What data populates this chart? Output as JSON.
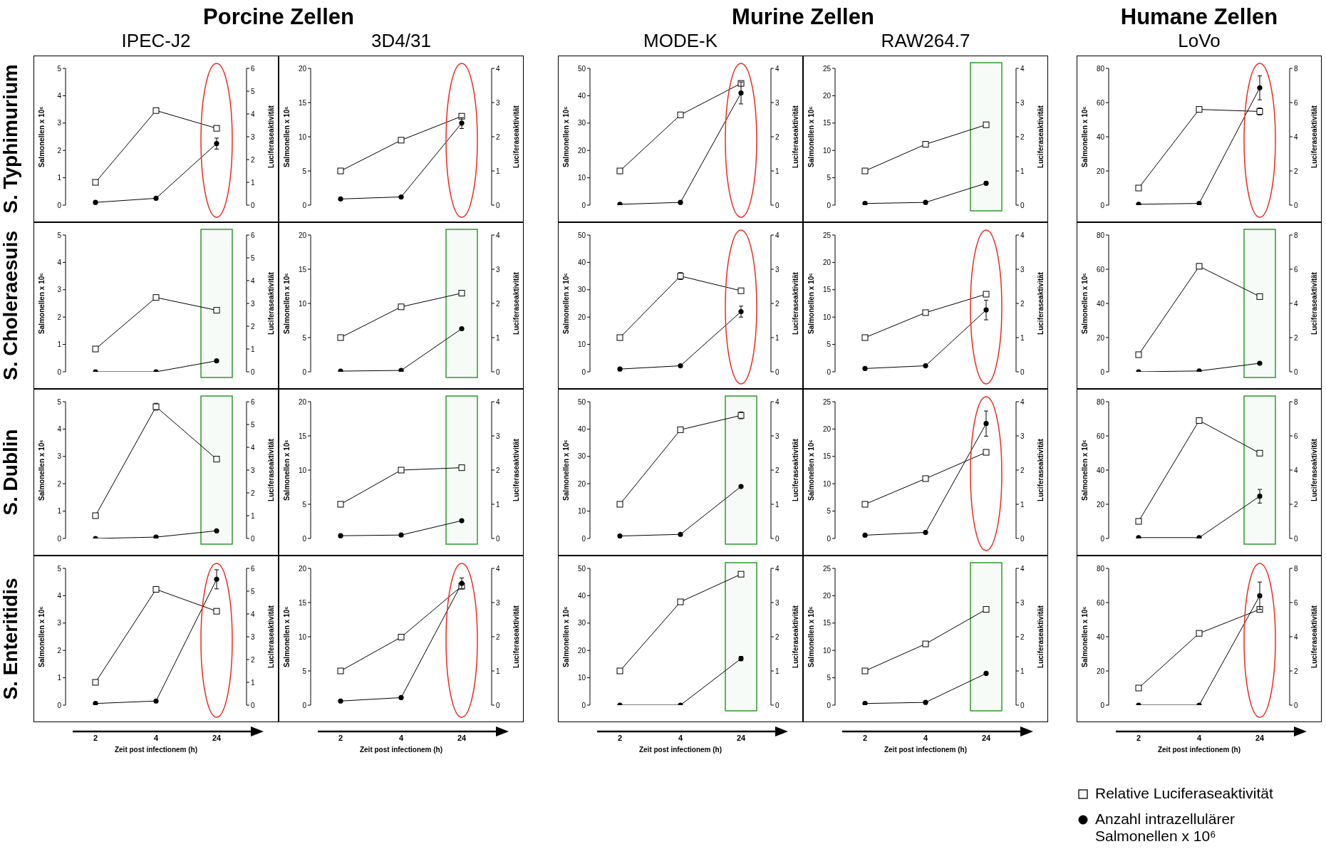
{
  "chart_data": [
    {
      "type": "line",
      "title": "IPEC-J2",
      "annotations": [
        "Porcine Zellen",
        "S. Typhimurium"
      ],
      "ylabel": "Salmonellen x 10⁶",
      "y2label": "Luciferaseaktivität",
      "categories": [
        "2",
        "4",
        "24"
      ],
      "ylim": [
        0,
        5
      ],
      "yticks": [
        0,
        1,
        2,
        3,
        4,
        5
      ],
      "y2lim": [
        0,
        6
      ],
      "y2ticks": [
        0,
        1,
        2,
        3,
        4,
        5,
        6
      ],
      "tick_labels": "y",
      "legend": false,
      "series": [
        {
          "type": "line",
          "marker": "square",
          "axis": "y2",
          "color": "#000000",
          "values": [
            1.0,
            4.15,
            3.37
          ],
          "errors": [
            null,
            0.1,
            0.05
          ]
        },
        {
          "type": "line",
          "marker": "circle",
          "axis": "y",
          "color": "#000000",
          "values": [
            0.1,
            0.25,
            2.25
          ],
          "errors": [
            null,
            null,
            0.2
          ]
        }
      ]
    },
    {
      "type": "line",
      "title": "3D4/31",
      "ylabel": "Salmonellen x 10⁶",
      "y2label": "Luciferaseaktivität",
      "categories": [
        "2",
        "4",
        "24"
      ],
      "ylim": [
        0,
        20
      ],
      "yticks": [
        0,
        5,
        10,
        15,
        20
      ],
      "y2lim": [
        0,
        4
      ],
      "y2ticks": [
        0,
        1,
        2,
        3,
        4
      ],
      "tick_labels": "y",
      "legend": false,
      "series": [
        {
          "type": "line",
          "marker": "square",
          "axis": "y2",
          "color": "#000000",
          "values": [
            1.0,
            1.9,
            2.6
          ],
          "errors": [
            null,
            0.05,
            0.05
          ]
        },
        {
          "type": "line",
          "marker": "circle",
          "axis": "y",
          "color": "#000000",
          "values": [
            0.9,
            1.2,
            12
          ],
          "errors": [
            null,
            null,
            0.8
          ]
        }
      ]
    },
    {
      "type": "line",
      "title": "MODE-K",
      "annotations": [
        "Murine Zellen"
      ],
      "ylabel": "Salmonellen x 10⁶",
      "y2label": "Luciferaseaktivität",
      "categories": [
        "2",
        "4",
        "24"
      ],
      "ylim": [
        0,
        50
      ],
      "yticks": [
        0,
        10,
        20,
        30,
        40,
        50
      ],
      "y2lim": [
        0,
        4
      ],
      "y2ticks": [
        0,
        1,
        2,
        3,
        4
      ],
      "tick_labels": "y",
      "legend": false,
      "series": [
        {
          "type": "line",
          "marker": "square",
          "axis": "y2",
          "color": "#000000",
          "values": [
            1.0,
            2.64,
            3.56
          ],
          "errors": [
            null,
            0.06,
            0.06
          ]
        },
        {
          "type": "line",
          "marker": "circle",
          "axis": "y",
          "color": "#000000",
          "values": [
            0.3,
            1.0,
            41
          ],
          "errors": [
            null,
            null,
            4
          ]
        }
      ]
    },
    {
      "type": "line",
      "title": "RAW264.7",
      "ylabel": "Salmonellen x 10⁶",
      "y2label": "Luciferaseaktivität",
      "categories": [
        "2",
        "4",
        "24"
      ],
      "ylim": [
        0,
        25
      ],
      "yticks": [
        0,
        5,
        10,
        15,
        20,
        25
      ],
      "y2lim": [
        0,
        4
      ],
      "y2ticks": [
        0,
        1,
        2,
        3,
        4
      ],
      "tick_labels": "y",
      "legend": false,
      "series": [
        {
          "type": "line",
          "marker": "square",
          "axis": "y2",
          "color": "#000000",
          "values": [
            1.0,
            1.78,
            2.35
          ],
          "errors": [
            null,
            null,
            0.06
          ]
        },
        {
          "type": "line",
          "marker": "circle",
          "axis": "y",
          "color": "#000000",
          "values": [
            0.3,
            0.5,
            4.0
          ],
          "errors": [
            null,
            null,
            0.3
          ]
        }
      ],
      "bands": [
        {
          "axis": "x",
          "from": "24",
          "to": "24",
          "color": "#2e9a2e"
        }
      ]
    },
    {
      "type": "line",
      "title": "LoVo",
      "annotations": [
        "Humane Zellen"
      ],
      "ylabel": "Salmonellen x 10⁶",
      "y2label": "Luciferaseaktivität",
      "categories": [
        "2",
        "4",
        "24"
      ],
      "ylim": [
        0,
        80
      ],
      "yticks": [
        0,
        20,
        40,
        60,
        80
      ],
      "y2lim": [
        0,
        8
      ],
      "y2ticks": [
        0,
        2,
        4,
        6,
        8
      ],
      "tick_labels": "y",
      "legend": false,
      "series": [
        {
          "type": "line",
          "marker": "square",
          "axis": "y2",
          "color": "#000000",
          "values": [
            1.0,
            5.6,
            5.48
          ],
          "errors": [
            null,
            0.15,
            0.2
          ]
        },
        {
          "type": "line",
          "marker": "circle",
          "axis": "y",
          "color": "#000000",
          "values": [
            0.5,
            1,
            68.6
          ],
          "errors": [
            null,
            null,
            7
          ]
        }
      ]
    },
    {
      "type": "line",
      "annotations": [
        "S. Choleraesuis"
      ],
      "ylabel": "Salmonellen x 10⁶",
      "y2label": "Luciferaseaktivität",
      "categories": [
        "2",
        "4",
        "24"
      ],
      "ylim": [
        0,
        5
      ],
      "yticks": [
        0,
        1,
        2,
        3,
        4,
        5
      ],
      "y2lim": [
        0,
        6
      ],
      "y2ticks": [
        0,
        1,
        2,
        3,
        4,
        5,
        6
      ],
      "tick_labels": "y",
      "legend": false,
      "series": [
        {
          "type": "line",
          "marker": "square",
          "axis": "y2",
          "color": "#000000",
          "values": [
            1.0,
            3.26,
            2.7
          ],
          "errors": [
            null,
            0.06,
            0.08
          ]
        },
        {
          "type": "line",
          "marker": "circle",
          "axis": "y",
          "color": "#000000",
          "values": [
            0,
            0,
            0.4
          ]
        }
      ],
      "bands": [
        {
          "axis": "x",
          "from": "24",
          "to": "24",
          "color": "#2e9a2e"
        }
      ]
    },
    {
      "type": "line",
      "ylabel": "Salmonellen x 10⁶",
      "y2label": "Luciferaseaktivität",
      "categories": [
        "2",
        "4",
        "24"
      ],
      "ylim": [
        0,
        20
      ],
      "yticks": [
        0,
        5,
        10,
        15,
        20
      ],
      "y2lim": [
        0,
        4
      ],
      "y2ticks": [
        0,
        1,
        2,
        3,
        4
      ],
      "tick_labels": "y",
      "legend": false,
      "series": [
        {
          "type": "line",
          "marker": "square",
          "axis": "y2",
          "color": "#000000",
          "values": [
            1.0,
            1.9,
            2.3
          ],
          "errors": [
            null,
            null,
            0.06
          ]
        },
        {
          "type": "line",
          "marker": "circle",
          "axis": "y",
          "color": "#000000",
          "values": [
            0.1,
            0.2,
            6.3
          ]
        }
      ],
      "bands": [
        {
          "axis": "x",
          "from": "24",
          "to": "24",
          "color": "#2e9a2e"
        }
      ]
    },
    {
      "type": "line",
      "ylabel": "Salmonellen x 10⁶",
      "y2label": "Luciferaseaktivität",
      "categories": [
        "2",
        "4",
        "24"
      ],
      "ylim": [
        0,
        50
      ],
      "yticks": [
        0,
        10,
        20,
        30,
        40,
        50
      ],
      "y2lim": [
        0,
        4
      ],
      "y2ticks": [
        0,
        1,
        2,
        3,
        4
      ],
      "tick_labels": "y",
      "legend": false,
      "series": [
        {
          "type": "line",
          "marker": "square",
          "axis": "y2",
          "color": "#000000",
          "values": [
            1.0,
            2.8,
            2.37
          ],
          "errors": [
            null,
            0.1,
            0.05
          ]
        },
        {
          "type": "line",
          "marker": "circle",
          "axis": "y",
          "color": "#000000",
          "values": [
            1,
            2.2,
            22
          ],
          "errors": [
            null,
            null,
            2
          ]
        }
      ]
    },
    {
      "type": "line",
      "ylabel": "Salmonellen x 10⁶",
      "y2label": "Luciferaseaktivität",
      "categories": [
        "2",
        "4",
        "24"
      ],
      "ylim": [
        0,
        25
      ],
      "yticks": [
        0,
        5,
        10,
        15,
        20,
        25
      ],
      "y2lim": [
        0,
        4
      ],
      "y2ticks": [
        0,
        1,
        2,
        3,
        4
      ],
      "tick_labels": "y",
      "legend": false,
      "series": [
        {
          "type": "line",
          "marker": "square",
          "axis": "y2",
          "color": "#000000",
          "values": [
            1.0,
            1.73,
            2.27
          ],
          "errors": [
            null,
            null,
            0.06
          ]
        },
        {
          "type": "line",
          "marker": "circle",
          "axis": "y",
          "color": "#000000",
          "values": [
            0.6,
            1.1,
            11.3
          ],
          "errors": [
            null,
            null,
            1.8
          ]
        }
      ]
    },
    {
      "type": "line",
      "ylabel": "Salmonellen x 10⁶",
      "y2label": "Luciferaseaktivität",
      "categories": [
        "2",
        "4",
        "24"
      ],
      "ylim": [
        0,
        80
      ],
      "yticks": [
        0,
        20,
        40,
        60,
        80
      ],
      "y2lim": [
        0,
        8
      ],
      "y2ticks": [
        0,
        2,
        4,
        6,
        8
      ],
      "tick_labels": "y",
      "legend": false,
      "series": [
        {
          "type": "line",
          "marker": "square",
          "axis": "y2",
          "color": "#000000",
          "values": [
            1.0,
            6.17,
            4.4
          ],
          "errors": [
            null,
            0.15,
            null
          ]
        },
        {
          "type": "line",
          "marker": "circle",
          "axis": "y",
          "color": "#000000",
          "values": [
            0,
            0.5,
            5
          ]
        }
      ],
      "bands": [
        {
          "axis": "x",
          "from": "24",
          "to": "24",
          "color": "#2e9a2e"
        }
      ]
    },
    {
      "type": "line",
      "annotations": [
        "S. Dublin"
      ],
      "ylabel": "Salmonellen x 10⁶",
      "y2label": "Luciferaseaktivität",
      "categories": [
        "2",
        "4",
        "24"
      ],
      "ylim": [
        0,
        5
      ],
      "yticks": [
        0,
        1,
        2,
        3,
        4,
        5
      ],
      "y2lim": [
        0,
        6
      ],
      "y2ticks": [
        0,
        1,
        2,
        3,
        4,
        5,
        6
      ],
      "tick_labels": "y",
      "legend": false,
      "series": [
        {
          "type": "line",
          "marker": "square",
          "axis": "y2",
          "color": "#000000",
          "values": [
            1.0,
            5.78,
            3.48
          ],
          "errors": [
            null,
            0.15,
            null
          ]
        },
        {
          "type": "line",
          "marker": "circle",
          "axis": "y",
          "color": "#000000",
          "values": [
            0,
            0.05,
            0.28
          ]
        }
      ],
      "bands": [
        {
          "axis": "x",
          "from": "24",
          "to": "24",
          "color": "#2e9a2e"
        }
      ]
    },
    {
      "type": "line",
      "ylabel": "Salmonellen x 10⁶",
      "y2label": "Luciferaseaktivität",
      "categories": [
        "2",
        "4",
        "24"
      ],
      "ylim": [
        0,
        20
      ],
      "yticks": [
        0,
        5,
        10,
        15,
        20
      ],
      "y2lim": [
        0,
        4
      ],
      "y2ticks": [
        0,
        1,
        2,
        3,
        4
      ],
      "tick_labels": "y",
      "legend": false,
      "series": [
        {
          "type": "line",
          "marker": "square",
          "axis": "y2",
          "color": "#000000",
          "values": [
            1.0,
            2.0,
            2.07
          ]
        },
        {
          "type": "line",
          "marker": "circle",
          "axis": "y",
          "color": "#000000",
          "values": [
            0.4,
            0.5,
            2.6
          ]
        }
      ],
      "bands": [
        {
          "axis": "x",
          "from": "24",
          "to": "24",
          "color": "#2e9a2e"
        }
      ]
    },
    {
      "type": "line",
      "ylabel": "Salmonellen x 10⁶",
      "y2label": "Luciferaseaktivität",
      "categories": [
        "2",
        "4",
        "24"
      ],
      "ylim": [
        0,
        50
      ],
      "yticks": [
        0,
        10,
        20,
        30,
        40,
        50
      ],
      "y2lim": [
        0,
        4
      ],
      "y2ticks": [
        0,
        1,
        2,
        3,
        4
      ],
      "tick_labels": "y",
      "legend": false,
      "series": [
        {
          "type": "line",
          "marker": "square",
          "axis": "y2",
          "color": "#000000",
          "values": [
            1.0,
            3.18,
            3.6
          ],
          "errors": [
            null,
            0.06,
            0.1
          ]
        },
        {
          "type": "line",
          "marker": "circle",
          "axis": "y",
          "color": "#000000",
          "values": [
            0.9,
            1.5,
            19
          ]
        }
      ],
      "bands": [
        {
          "axis": "x",
          "from": "24",
          "to": "24",
          "color": "#2e9a2e"
        }
      ]
    },
    {
      "type": "line",
      "ylabel": "Salmonellen x 10⁶",
      "y2label": "Luciferaseaktivität",
      "categories": [
        "2",
        "4",
        "24"
      ],
      "ylim": [
        0,
        25
      ],
      "yticks": [
        0,
        5,
        10,
        15,
        20,
        25
      ],
      "y2lim": [
        0,
        4
      ],
      "y2ticks": [
        0,
        1,
        2,
        3,
        4
      ],
      "tick_labels": "y",
      "legend": false,
      "series": [
        {
          "type": "line",
          "marker": "square",
          "axis": "y2",
          "color": "#000000",
          "values": [
            1.0,
            1.75,
            2.52
          ],
          "errors": [
            null,
            null,
            0.06
          ]
        },
        {
          "type": "line",
          "marker": "circle",
          "axis": "y",
          "color": "#000000",
          "values": [
            0.6,
            1.1,
            21
          ],
          "errors": [
            null,
            null,
            2.3
          ]
        }
      ]
    },
    {
      "type": "line",
      "ylabel": "Salmonellen x 10⁶",
      "y2label": "Luciferaseaktivität",
      "categories": [
        "2",
        "4",
        "24"
      ],
      "ylim": [
        0,
        80
      ],
      "yticks": [
        0,
        20,
        40,
        60,
        80
      ],
      "y2lim": [
        0,
        8
      ],
      "y2ticks": [
        0,
        2,
        4,
        6,
        8
      ],
      "tick_labels": "y",
      "legend": false,
      "series": [
        {
          "type": "line",
          "marker": "square",
          "axis": "y2",
          "color": "#000000",
          "values": [
            1.0,
            6.9,
            4.99
          ],
          "errors": [
            null,
            0.15,
            0.1
          ]
        },
        {
          "type": "line",
          "marker": "circle",
          "axis": "y",
          "color": "#000000",
          "values": [
            0.5,
            0.5,
            24.7
          ],
          "errors": [
            null,
            null,
            4
          ]
        }
      ],
      "bands": [
        {
          "axis": "x",
          "from": "24",
          "to": "24",
          "color": "#2e9a2e"
        }
      ]
    },
    {
      "type": "line",
      "annotations": [
        "S. Enteritidis"
      ],
      "xlabel": "Zeit post infectionem (h)",
      "ylabel": "Salmonellen x 10⁶",
      "y2label": "Luciferaseaktivität",
      "categories": [
        "2",
        "4",
        "24"
      ],
      "ylim": [
        0,
        5
      ],
      "yticks": [
        0,
        1,
        2,
        3,
        4,
        5
      ],
      "y2lim": [
        0,
        6
      ],
      "y2ticks": [
        0,
        1,
        2,
        3,
        4,
        5,
        6
      ],
      "legend": false,
      "series": [
        {
          "type": "line",
          "marker": "square",
          "axis": "y2",
          "color": "#000000",
          "values": [
            1.0,
            5.08,
            4.12
          ],
          "errors": [
            null,
            0.08,
            0.1
          ]
        },
        {
          "type": "line",
          "marker": "circle",
          "axis": "y",
          "color": "#000000",
          "values": [
            0.06,
            0.15,
            4.6
          ],
          "errors": [
            null,
            null,
            0.35
          ]
        }
      ]
    },
    {
      "type": "line",
      "xlabel": "Zeit post infectionem (h)",
      "ylabel": "Salmonellen x 10⁶",
      "y2label": "Luciferaseaktivität",
      "categories": [
        "2",
        "4",
        "24"
      ],
      "ylim": [
        0,
        20
      ],
      "yticks": [
        0,
        5,
        10,
        15,
        20
      ],
      "y2lim": [
        0,
        4
      ],
      "y2ticks": [
        0,
        1,
        2,
        3,
        4
      ],
      "legend": false,
      "series": [
        {
          "type": "line",
          "marker": "square",
          "axis": "y2",
          "color": "#000000",
          "values": [
            1.0,
            1.99,
            3.48
          ]
        },
        {
          "type": "line",
          "marker": "circle",
          "axis": "y",
          "color": "#000000",
          "values": [
            0.6,
            1.1,
            17.8
          ],
          "errors": [
            null,
            null,
            0.8
          ]
        }
      ]
    },
    {
      "type": "line",
      "xlabel": "Zeit post infectionem (h)",
      "ylabel": "Salmonellen x 10⁶",
      "y2label": "Luciferaseaktivität",
      "categories": [
        "2",
        "4",
        "24"
      ],
      "ylim": [
        0,
        50
      ],
      "yticks": [
        0,
        10,
        20,
        30,
        40,
        50
      ],
      "y2lim": [
        0,
        4
      ],
      "y2ticks": [
        0,
        1,
        2,
        3,
        4
      ],
      "legend": false,
      "series": [
        {
          "type": "line",
          "marker": "square",
          "axis": "y2",
          "color": "#000000",
          "values": [
            1.0,
            3.02,
            3.83
          ],
          "errors": [
            null,
            0.05,
            0.05
          ]
        },
        {
          "type": "line",
          "marker": "circle",
          "axis": "y",
          "color": "#000000",
          "values": [
            0,
            0,
            17
          ],
          "errors": [
            null,
            null,
            0.8
          ]
        }
      ],
      "bands": [
        {
          "axis": "x",
          "from": "24",
          "to": "24",
          "color": "#2e9a2e"
        }
      ]
    },
    {
      "type": "line",
      "xlabel": "Zeit post infectionem (h)",
      "ylabel": "Salmonellen x 10⁶",
      "y2label": "Luciferaseaktivität",
      "categories": [
        "2",
        "4",
        "24"
      ],
      "ylim": [
        0,
        25
      ],
      "yticks": [
        0,
        5,
        10,
        15,
        20,
        25
      ],
      "y2lim": [
        0,
        4
      ],
      "y2ticks": [
        0,
        1,
        2,
        3,
        4
      ],
      "legend": false,
      "series": [
        {
          "type": "line",
          "marker": "square",
          "axis": "y2",
          "color": "#000000",
          "values": [
            1.0,
            1.79,
            2.8
          ],
          "errors": [
            null,
            null,
            0.06
          ]
        },
        {
          "type": "line",
          "marker": "circle",
          "axis": "y",
          "color": "#000000",
          "values": [
            0.3,
            0.5,
            5.8
          ],
          "errors": [
            null,
            null,
            0.2
          ]
        }
      ],
      "bands": [
        {
          "axis": "x",
          "from": "24",
          "to": "24",
          "color": "#2e9a2e"
        }
      ]
    },
    {
      "type": "line",
      "xlabel": "Zeit post infectionem (h)",
      "ylabel": "Salmonellen x 10⁶",
      "y2label": "Luciferaseaktivität",
      "categories": [
        "2",
        "4",
        "24"
      ],
      "ylim": [
        0,
        80
      ],
      "yticks": [
        0,
        20,
        40,
        60,
        80
      ],
      "y2lim": [
        0,
        8
      ],
      "y2ticks": [
        0,
        2,
        4,
        6,
        8
      ],
      "legend": "bottom",
      "series": [
        {
          "type": "line",
          "name": "Relative Luciferaseaktivität",
          "marker": "square",
          "axis": "y2",
          "color": "#000000",
          "values": [
            1.0,
            4.2,
            5.6
          ]
        },
        {
          "type": "line",
          "name": "Anzahl intrazellulärer Salmonellen x 10⁶",
          "marker": "circle",
          "axis": "y",
          "color": "#000000",
          "values": [
            0,
            0,
            64
          ],
          "errors": [
            null,
            null,
            8
          ]
        }
      ]
    }
  ]
}
